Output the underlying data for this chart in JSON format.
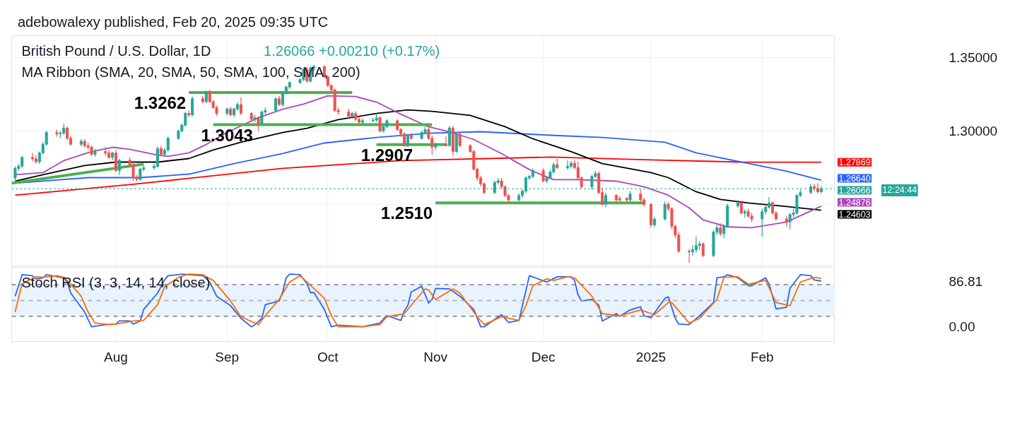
{
  "chart_data": [
    {
      "type": "candlestick",
      "title": "British Pound / U.S. Dollar, 1D",
      "subtitle": "MA Ribbon (SMA, 20, SMA, 50, SMA, 100, SMA, 200)",
      "annotations": [
        "adebowalexy published, Feb 20, 2025 09:35 UTC",
        "1.26066  +0.00210 (+0.17%)",
        "12:24:44",
        {
          "text": "1.27869",
          "x": "2025-02-20",
          "y": 1.27869
        },
        {
          "text": "1.26640",
          "x": "2025-02-20",
          "y": 1.2664
        },
        {
          "text": "1.24876",
          "x": "2025-02-20",
          "y": 1.24876
        },
        {
          "text": "1.24603",
          "x": "2025-02-20",
          "y": 1.24603
        },
        {
          "text": "1.3262",
          "x": "2024-08-22",
          "y": 1.3262
        },
        {
          "text": "1.3043",
          "x": "2024-09-02",
          "y": 1.3043
        },
        {
          "text": "1.2907",
          "x": "2024-10-18",
          "y": 1.2907
        },
        {
          "text": "1.2510",
          "x": "2024-11-01",
          "y": 1.251
        }
      ],
      "x": [
        "2024-07-03",
        "2024-07-04",
        "2024-07-05",
        "2024-07-08",
        "2024-07-09",
        "2024-07-10",
        "2024-07-11",
        "2024-07-12",
        "2024-07-15",
        "2024-07-16",
        "2024-07-17",
        "2024-07-18",
        "2024-07-19",
        "2024-07-22",
        "2024-07-23",
        "2024-07-24",
        "2024-07-25",
        "2024-07-26",
        "2024-07-29",
        "2024-07-30",
        "2024-07-31",
        "2024-08-01",
        "2024-08-02",
        "2024-08-05",
        "2024-08-06",
        "2024-08-07",
        "2024-08-08",
        "2024-08-09",
        "2024-08-12",
        "2024-08-13",
        "2024-08-14",
        "2024-08-15",
        "2024-08-16",
        "2024-08-19",
        "2024-08-20",
        "2024-08-21",
        "2024-08-22",
        "2024-08-23",
        "2024-08-26",
        "2024-08-27",
        "2024-08-28",
        "2024-08-29",
        "2024-08-30",
        "2024-09-02",
        "2024-09-03",
        "2024-09-04",
        "2024-09-05",
        "2024-09-06",
        "2024-09-09",
        "2024-09-10",
        "2024-09-11",
        "2024-09-12",
        "2024-09-13",
        "2024-09-16",
        "2024-09-17",
        "2024-09-18",
        "2024-09-19",
        "2024-09-20",
        "2024-09-23",
        "2024-09-24",
        "2024-09-25",
        "2024-09-26",
        "2024-09-27",
        "2024-09-30",
        "2024-10-01",
        "2024-10-02",
        "2024-10-03",
        "2024-10-04",
        "2024-10-07",
        "2024-10-08",
        "2024-10-09",
        "2024-10-10",
        "2024-10-11",
        "2024-10-14",
        "2024-10-15",
        "2024-10-16",
        "2024-10-17",
        "2024-10-18",
        "2024-10-21",
        "2024-10-22",
        "2024-10-23",
        "2024-10-24",
        "2024-10-25",
        "2024-10-28",
        "2024-10-29",
        "2024-10-30",
        "2024-10-31",
        "2024-11-01",
        "2024-11-04",
        "2024-11-05",
        "2024-11-06",
        "2024-11-07",
        "2024-11-08",
        "2024-11-11",
        "2024-11-12",
        "2024-11-13",
        "2024-11-14",
        "2024-11-15",
        "2024-11-18",
        "2024-11-19",
        "2024-11-20",
        "2024-11-21",
        "2024-11-22",
        "2024-11-25",
        "2024-11-26",
        "2024-11-27",
        "2024-11-28",
        "2024-11-29",
        "2024-12-02",
        "2024-12-03",
        "2024-12-04",
        "2024-12-05",
        "2024-12-06",
        "2024-12-09",
        "2024-12-10",
        "2024-12-11",
        "2024-12-12",
        "2024-12-13",
        "2024-12-16",
        "2024-12-17",
        "2024-12-18",
        "2024-12-19",
        "2024-12-20",
        "2024-12-23",
        "2024-12-24",
        "2024-12-26",
        "2024-12-27",
        "2024-12-30",
        "2024-12-31",
        "2025-01-02",
        "2025-01-03",
        "2025-01-06",
        "2025-01-07",
        "2025-01-08",
        "2025-01-09",
        "2025-01-10",
        "2025-01-13",
        "2025-01-14",
        "2025-01-15",
        "2025-01-16",
        "2025-01-17",
        "2025-01-20",
        "2025-01-21",
        "2025-01-22",
        "2025-01-23",
        "2025-01-24",
        "2025-01-27",
        "2025-01-28",
        "2025-01-29",
        "2025-01-30",
        "2025-01-31",
        "2025-02-03",
        "2025-02-04",
        "2025-02-05",
        "2025-02-06",
        "2025-02-07",
        "2025-02-10",
        "2025-02-11",
        "2025-02-12",
        "2025-02-13",
        "2025-02-14",
        "2025-02-17",
        "2025-02-18",
        "2025-02-19",
        "2025-02-20"
      ],
      "ohlc": [
        [
          1.268,
          1.276,
          1.2665,
          1.2745
        ],
        [
          1.2745,
          1.2775,
          1.273,
          1.276
        ],
        [
          1.276,
          1.283,
          1.275,
          1.282
        ],
        [
          1.282,
          1.285,
          1.2795,
          1.281
        ],
        [
          1.281,
          1.2835,
          1.278,
          1.279
        ],
        [
          1.279,
          1.286,
          1.2775,
          1.285
        ],
        [
          1.285,
          1.2925,
          1.284,
          1.291
        ],
        [
          1.291,
          1.3,
          1.29,
          1.299
        ],
        [
          1.299,
          1.301,
          1.296,
          1.298
        ],
        [
          1.298,
          1.3,
          1.295,
          1.2985
        ],
        [
          1.2985,
          1.305,
          1.2975,
          1.302
        ],
        [
          1.302,
          1.303,
          1.294,
          1.295
        ],
        [
          1.295,
          1.2965,
          1.29,
          1.291
        ],
        [
          1.291,
          1.2945,
          1.2895,
          1.293
        ],
        [
          1.293,
          1.2945,
          1.2885,
          1.29
        ],
        [
          1.29,
          1.292,
          1.287,
          1.289
        ],
        [
          1.289,
          1.29,
          1.283,
          1.284
        ],
        [
          1.284,
          1.288,
          1.2825,
          1.286
        ],
        [
          1.286,
          1.289,
          1.283,
          1.285
        ],
        [
          1.285,
          1.287,
          1.281,
          1.282
        ],
        [
          1.282,
          1.286,
          1.28,
          1.285
        ],
        [
          1.285,
          1.287,
          1.272,
          1.273
        ],
        [
          1.273,
          1.281,
          1.27,
          1.28
        ],
        [
          1.28,
          1.282,
          1.276,
          1.277
        ],
        [
          1.277,
          1.279,
          1.266,
          1.268
        ],
        [
          1.268,
          1.27,
          1.2655,
          1.267
        ],
        [
          1.267,
          1.275,
          1.266,
          1.274
        ],
        [
          1.274,
          1.2765,
          1.2725,
          1.275
        ],
        [
          1.275,
          1.2775,
          1.2735,
          1.276
        ],
        [
          1.276,
          1.2895,
          1.275,
          1.288
        ],
        [
          1.288,
          1.29,
          1.283,
          1.284
        ],
        [
          1.284,
          1.2885,
          1.2825,
          1.287
        ],
        [
          1.287,
          1.296,
          1.286,
          1.295
        ],
        [
          1.295,
          1.301,
          1.294,
          1.3
        ],
        [
          1.3,
          1.305,
          1.299,
          1.304
        ],
        [
          1.304,
          1.313,
          1.303,
          1.312
        ],
        [
          1.312,
          1.314,
          1.3095,
          1.311
        ],
        [
          1.311,
          1.3235,
          1.31,
          1.322
        ],
        [
          1.322,
          1.324,
          1.319,
          1.32
        ],
        [
          1.32,
          1.3275,
          1.319,
          1.327
        ],
        [
          1.327,
          1.328,
          1.319,
          1.32
        ],
        [
          1.32,
          1.321,
          1.315,
          1.316
        ],
        [
          1.316,
          1.3175,
          1.3105,
          1.312
        ],
        [
          1.312,
          1.316,
          1.3105,
          1.315
        ],
        [
          1.315,
          1.3165,
          1.31,
          1.311
        ],
        [
          1.311,
          1.316,
          1.3095,
          1.315
        ],
        [
          1.315,
          1.3195,
          1.314,
          1.318
        ],
        [
          1.318,
          1.323,
          1.311,
          1.312
        ],
        [
          1.312,
          1.313,
          1.307,
          1.308
        ],
        [
          1.308,
          1.311,
          1.306,
          1.309
        ],
        [
          1.309,
          1.31,
          1.3,
          1.305
        ],
        [
          1.305,
          1.314,
          1.304,
          1.313
        ],
        [
          1.313,
          1.316,
          1.3115,
          1.314
        ],
        [
          1.314,
          1.323,
          1.313,
          1.322
        ],
        [
          1.322,
          1.324,
          1.317,
          1.318
        ],
        [
          1.318,
          1.327,
          1.3165,
          1.326
        ],
        [
          1.326,
          1.331,
          1.325,
          1.33
        ],
        [
          1.33,
          1.334,
          1.3285,
          1.333
        ],
        [
          1.333,
          1.336,
          1.332,
          1.335
        ],
        [
          1.335,
          1.343,
          1.334,
          1.342
        ],
        [
          1.342,
          1.3435,
          1.333,
          1.334
        ],
        [
          1.334,
          1.344,
          1.333,
          1.343
        ],
        [
          1.343,
          1.345,
          1.341,
          1.344
        ],
        [
          1.344,
          1.3445,
          1.336,
          1.337
        ],
        [
          1.337,
          1.338,
          1.33,
          1.331
        ],
        [
          1.331,
          1.332,
          1.3255,
          1.328
        ],
        [
          1.328,
          1.329,
          1.313,
          1.314
        ],
        [
          1.314,
          1.316,
          1.311,
          1.313
        ],
        [
          1.313,
          1.315,
          1.3085,
          1.31
        ],
        [
          1.31,
          1.313,
          1.3085,
          1.312
        ],
        [
          1.312,
          1.3135,
          1.307,
          1.308
        ],
        [
          1.308,
          1.3095,
          1.3045,
          1.306
        ],
        [
          1.306,
          1.3085,
          1.305,
          1.307
        ],
        [
          1.307,
          1.309,
          1.306,
          1.3075
        ],
        [
          1.3075,
          1.312,
          1.306,
          1.309
        ],
        [
          1.309,
          1.31,
          1.299,
          1.3
        ],
        [
          1.3,
          1.304,
          1.299,
          1.303
        ],
        [
          1.303,
          1.308,
          1.302,
          1.307
        ],
        [
          1.307,
          1.308,
          1.3,
          1.301
        ],
        [
          1.301,
          1.302,
          1.296,
          1.298
        ],
        [
          1.298,
          1.299,
          1.289,
          1.29
        ],
        [
          1.29,
          1.298,
          1.289,
          1.297
        ],
        [
          1.297,
          1.2985,
          1.294,
          1.295
        ],
        [
          1.295,
          1.3,
          1.294,
          1.299
        ],
        [
          1.299,
          1.303,
          1.298,
          1.301
        ],
        [
          1.301,
          1.304,
          1.294,
          1.295
        ],
        [
          1.295,
          1.297,
          1.284,
          1.289
        ],
        [
          1.289,
          1.292,
          1.287,
          1.291
        ],
        [
          1.291,
          1.2965,
          1.2895,
          1.29
        ],
        [
          1.29,
          1.3035,
          1.2895,
          1.302
        ],
        [
          1.302,
          1.3035,
          1.2835,
          1.286
        ],
        [
          1.286,
          1.299,
          1.285,
          1.298
        ],
        [
          1.298,
          1.299,
          1.289,
          1.29
        ],
        [
          1.29,
          1.291,
          1.285,
          1.286
        ],
        [
          1.286,
          1.287,
          1.273,
          1.274
        ],
        [
          1.274,
          1.275,
          1.266,
          1.268
        ],
        [
          1.268,
          1.2695,
          1.262,
          1.264
        ],
        [
          1.264,
          1.265,
          1.257,
          1.258
        ],
        [
          1.258,
          1.266,
          1.257,
          1.265
        ],
        [
          1.265,
          1.268,
          1.2635,
          1.266
        ],
        [
          1.266,
          1.268,
          1.2605,
          1.262
        ],
        [
          1.262,
          1.263,
          1.255,
          1.256
        ],
        [
          1.256,
          1.257,
          1.251,
          1.253
        ],
        [
          1.253,
          1.2575,
          1.252,
          1.256
        ],
        [
          1.256,
          1.26,
          1.2545,
          1.259
        ],
        [
          1.259,
          1.269,
          1.2575,
          1.268
        ],
        [
          1.268,
          1.27,
          1.2665,
          1.269
        ],
        [
          1.269,
          1.2745,
          1.268,
          1.273
        ],
        [
          1.273,
          1.2745,
          1.265,
          1.266
        ],
        [
          1.266,
          1.269,
          1.2645,
          1.268
        ],
        [
          1.268,
          1.2735,
          1.267,
          1.272
        ],
        [
          1.272,
          1.2785,
          1.271,
          1.277
        ],
        [
          1.277,
          1.281,
          1.274,
          1.275
        ],
        [
          1.275,
          1.28,
          1.2735,
          1.276
        ],
        [
          1.276,
          1.2795,
          1.2745,
          1.278
        ],
        [
          1.278,
          1.28,
          1.274,
          1.275
        ],
        [
          1.275,
          1.279,
          1.267,
          1.268
        ],
        [
          1.268,
          1.269,
          1.261,
          1.262
        ],
        [
          1.262,
          1.27,
          1.26,
          1.269
        ],
        [
          1.269,
          1.273,
          1.268,
          1.271
        ],
        [
          1.271,
          1.2725,
          1.257,
          1.258
        ],
        [
          1.258,
          1.261,
          1.249,
          1.25
        ],
        [
          1.25,
          1.258,
          1.248,
          1.256
        ],
        [
          1.256,
          1.257,
          1.251,
          1.253
        ],
        [
          1.254,
          1.2555,
          1.2515,
          1.253
        ],
        [
          1.254,
          1.255,
          1.2515,
          1.253
        ],
        [
          1.253,
          1.259,
          1.252,
          1.257
        ],
        [
          1.257,
          1.26,
          1.252,
          1.253
        ],
        [
          1.253,
          1.2545,
          1.2485,
          1.25
        ],
        [
          1.25,
          1.251,
          1.234,
          1.236
        ],
        [
          1.236,
          1.2415,
          1.2345,
          1.24
        ],
        [
          1.24,
          1.252,
          1.239,
          1.25
        ],
        [
          1.25,
          1.2515,
          1.2455,
          1.247
        ],
        [
          1.247,
          1.248,
          1.233,
          1.235
        ],
        [
          1.235,
          1.236,
          1.227,
          1.229
        ],
        [
          1.229,
          1.231,
          1.217,
          1.218
        ],
        [
          1.218,
          1.2195,
          1.21,
          1.2175
        ],
        [
          1.2175,
          1.222,
          1.215,
          1.219
        ],
        [
          1.219,
          1.228,
          1.217,
          1.222
        ],
        [
          1.222,
          1.225,
          1.219,
          1.223
        ],
        [
          1.223,
          1.224,
          1.214,
          1.215
        ],
        [
          1.215,
          1.2325,
          1.214,
          1.231
        ],
        [
          1.231,
          1.236,
          1.229,
          1.234
        ],
        [
          1.234,
          1.237,
          1.2285,
          1.23
        ],
        [
          1.23,
          1.2365,
          1.227,
          1.235
        ],
        [
          1.235,
          1.2505,
          1.234,
          1.249
        ],
        [
          1.249,
          1.253,
          1.2475,
          1.251
        ],
        [
          1.251,
          1.2525,
          1.243,
          1.244
        ],
        [
          1.244,
          1.2465,
          1.241,
          1.245
        ],
        [
          1.245,
          1.247,
          1.241,
          1.242
        ],
        [
          1.242,
          1.244,
          1.238,
          1.24
        ],
        [
          1.24,
          1.247,
          1.228,
          1.245
        ],
        [
          1.245,
          1.249,
          1.243,
          1.248
        ],
        [
          1.248,
          1.255,
          1.247,
          1.251
        ],
        [
          1.251,
          1.252,
          1.243,
          1.244
        ],
        [
          1.244,
          1.2455,
          1.239,
          1.24
        ],
        [
          1.24,
          1.242,
          1.235,
          1.238
        ],
        [
          1.238,
          1.244,
          1.233,
          1.243
        ],
        [
          1.243,
          1.247,
          1.241,
          1.244
        ],
        [
          1.244,
          1.257,
          1.243,
          1.256
        ],
        [
          1.256,
          1.26,
          1.255,
          1.258
        ],
        [
          1.258,
          1.264,
          1.257,
          1.262
        ],
        [
          1.262,
          1.264,
          1.259,
          1.261
        ],
        [
          1.261,
          1.2645,
          1.2575,
          1.2586
        ],
        [
          1.25856,
          1.2625,
          1.2575,
          1.26066
        ]
      ],
      "colors": [
        "#26a69a",
        "#26a69a",
        "#26a69a",
        "#ef5350",
        "#ef5350",
        "#26a69a",
        "#26a69a",
        "#26a69a",
        "#ef5350",
        "#26a69a",
        "#26a69a",
        "#ef5350",
        "#ef5350",
        "#26a69a",
        "#ef5350",
        "#ef5350",
        "#ef5350",
        "#26a69a",
        "#ef5350",
        "#ef5350",
        "#26a69a",
        "#ef5350",
        "#26a69a",
        "#ef5350",
        "#ef5350",
        "#ef5350",
        "#26a69a",
        "#26a69a",
        "#26a69a",
        "#26a69a",
        "#ef5350",
        "#26a69a",
        "#26a69a",
        "#26a69a",
        "#26a69a",
        "#26a69a",
        "#ef5350",
        "#26a69a",
        "#ef5350",
        "#26a69a",
        "#ef5350",
        "#ef5350",
        "#ef5350",
        "#26a69a",
        "#ef5350",
        "#26a69a",
        "#26a69a",
        "#ef5350",
        "#ef5350",
        "#26a69a",
        "#ef5350",
        "#26a69a",
        "#26a69a",
        "#26a69a",
        "#ef5350",
        "#26a69a",
        "#26a69a",
        "#26a69a",
        "#26a69a",
        "#26a69a",
        "#ef5350",
        "#26a69a",
        "#26a69a",
        "#ef5350",
        "#ef5350",
        "#ef5350",
        "#ef5350",
        "#ef5350",
        "#ef5350",
        "#26a69a",
        "#ef5350",
        "#ef5350",
        "#26a69a",
        "#26a69a",
        "#26a69a",
        "#ef5350",
        "#26a69a",
        "#26a69a",
        "#ef5350",
        "#ef5350",
        "#ef5350",
        "#26a69a",
        "#ef5350",
        "#26a69a",
        "#26a69a",
        "#ef5350",
        "#ef5350",
        "#26a69a",
        "#ef5350",
        "#26a69a",
        "#ef5350",
        "#26a69a",
        "#ef5350",
        "#ef5350",
        "#ef5350",
        "#ef5350",
        "#ef5350",
        "#ef5350",
        "#26a69a",
        "#26a69a",
        "#ef5350",
        "#ef5350",
        "#ef5350",
        "#26a69a",
        "#26a69a",
        "#26a69a",
        "#26a69a",
        "#26a69a",
        "#ef5350",
        "#26a69a",
        "#26a69a",
        "#26a69a",
        "#ef5350",
        "#26a69a",
        "#26a69a",
        "#ef5350",
        "#ef5350",
        "#ef5350",
        "#26a69a",
        "#26a69a",
        "#ef5350",
        "#ef5350",
        "#26a69a",
        "#ef5350",
        "#ef5350",
        "#ef5350",
        "#26a69a",
        "#ef5350",
        "#ef5350",
        "#ef5350",
        "#26a69a",
        "#26a69a",
        "#ef5350",
        "#ef5350",
        "#ef5350",
        "#ef5350",
        "#ef5350",
        "#26a69a",
        "#26a69a",
        "#26a69a",
        "#ef5350",
        "#26a69a",
        "#26a69a",
        "#ef5350",
        "#26a69a",
        "#26a69a",
        "#26a69a",
        "#ef5350",
        "#26a69a",
        "#ef5350",
        "#ef5350",
        "#26a69a",
        "#26a69a",
        "#26a69a",
        "#ef5350",
        "#ef5350",
        "#ef5350",
        "#26a69a",
        "#26a69a",
        "#26a69a",
        "#26a69a",
        "#26a69a",
        "#ef5350",
        "#ef5350",
        "#26a69a"
      ],
      "series": [
        {
          "type": "line",
          "color": "#ff0000",
          "x": [
            "2024-07-03",
            "2024-08-05",
            "2024-09-18",
            "2024-10-22",
            "2024-12-04",
            "2025-01-02",
            "2025-01-28",
            "2025-02-20"
          ],
          "values": [
            1.2562,
            1.2634,
            1.2745,
            1.2798,
            1.2822,
            1.2803,
            1.2788,
            1.27869
          ]
        },
        {
          "type": "line",
          "color": "#2962ff",
          "x": [
            "2024-07-03",
            "2024-07-24",
            "2024-08-08",
            "2024-08-22",
            "2024-09-04",
            "2024-09-18",
            "2024-09-30",
            "2024-10-15",
            "2024-10-30",
            "2024-11-14",
            "2024-12-04",
            "2024-12-19",
            "2025-01-06",
            "2025-01-15",
            "2025-01-28",
            "2025-02-10",
            "2025-02-20"
          ],
          "values": [
            1.2644,
            1.2682,
            1.2682,
            1.2706,
            1.2778,
            1.2846,
            1.2918,
            1.2956,
            1.2985,
            1.2995,
            1.2971,
            1.2956,
            1.2923,
            1.2851,
            1.2788,
            1.2726,
            1.2664
          ]
        },
        {
          "type": "line",
          "color": "#000000",
          "x": [
            "2024-07-03",
            "2024-07-11",
            "2024-07-23",
            "2024-08-01",
            "2024-08-13",
            "2024-08-22",
            "2024-08-29",
            "2024-09-06",
            "2024-09-18",
            "2024-09-25",
            "2024-10-04",
            "2024-10-15",
            "2024-10-24",
            "2024-10-31",
            "2024-11-11",
            "2024-11-21",
            "2024-11-29",
            "2024-12-10",
            "2024-12-19",
            "2025-01-02",
            "2025-01-07",
            "2025-01-15",
            "2025-01-22",
            "2025-01-30",
            "2025-02-10",
            "2025-02-20"
          ],
          "values": [
            1.2658,
            1.2702,
            1.2764,
            1.2788,
            1.2788,
            1.2812,
            1.287,
            1.2923,
            1.299,
            1.3019,
            1.3077,
            1.312,
            1.3144,
            1.3134,
            1.3106,
            1.3029,
            1.2947,
            1.286,
            1.2778,
            1.2716,
            1.2682,
            1.2586,
            1.2533,
            1.2509,
            1.2485,
            1.24603
          ]
        },
        {
          "type": "line",
          "color": "#ab47bc",
          "x": [
            "2024-07-03",
            "2024-07-11",
            "2024-07-17",
            "2024-07-25",
            "2024-07-31",
            "2024-08-05",
            "2024-08-13",
            "2024-08-16",
            "2024-08-22",
            "2024-08-27",
            "2024-09-02",
            "2024-09-11",
            "2024-09-18",
            "2024-09-24",
            "2024-10-01",
            "2024-10-09",
            "2024-10-15",
            "2024-10-22",
            "2024-10-30",
            "2024-11-05",
            "2024-11-12",
            "2024-11-20",
            "2024-11-27",
            "2024-11-29",
            "2024-12-05",
            "2024-12-12",
            "2024-12-23",
            "2024-12-31",
            "2025-01-07",
            "2025-01-13",
            "2025-01-17",
            "2025-01-24",
            "2025-01-31",
            "2025-02-10",
            "2025-02-20"
          ],
          "values": [
            1.2702,
            1.2716,
            1.2798,
            1.286,
            1.2889,
            1.2875,
            1.2836,
            1.2827,
            1.2851,
            1.2908,
            1.299,
            1.3091,
            1.3149,
            1.3183,
            1.324,
            1.3235,
            1.3197,
            1.3115,
            1.3029,
            1.2995,
            1.2942,
            1.2846,
            1.275,
            1.2726,
            1.2668,
            1.2668,
            1.2658,
            1.262,
            1.2562,
            1.2476,
            1.2394,
            1.2346,
            1.2341,
            1.2379,
            1.24876
          ]
        },
        {
          "type": "line",
          "color": "#4caf50",
          "x": [
            "2024-07-02",
            "2024-08-09"
          ],
          "values": [
            1.2644,
            1.2774
          ]
        },
        {
          "type": "line",
          "color": "#4caf50",
          "x": [
            "2024-08-22",
            "2024-10-08"
          ],
          "values": [
            1.3262,
            1.3262
          ]
        },
        {
          "type": "line",
          "color": "#4caf50",
          "x": [
            "2024-08-29",
            "2024-10-31"
          ],
          "values": [
            1.3043,
            1.3043
          ]
        },
        {
          "type": "line",
          "color": "#4caf50",
          "x": [
            "2024-10-15",
            "2024-11-04"
          ],
          "values": [
            1.2907,
            1.2907
          ]
        },
        {
          "type": "line",
          "color": "#4caf50",
          "x": [
            "2024-11-01",
            "2024-12-31"
          ],
          "values": [
            1.251,
            1.251
          ]
        }
      ],
      "xlim": [
        "2024-07-02",
        "2025-02-24"
      ],
      "ylim": [
        1.208,
        1.365
      ],
      "xticks": [
        {
          "value": "2024-08-01",
          "label": null
        },
        {
          "value": "2024-09-02",
          "label": null
        },
        {
          "value": "2024-10-01",
          "label": null
        },
        {
          "value": "2024-11-01",
          "label": null
        },
        {
          "value": "2024-12-02",
          "label": null
        },
        {
          "value": "2025-01-02",
          "label": null
        },
        {
          "value": "2025-02-03",
          "label": null
        }
      ],
      "yticks": [
        {
          "value": 1.35,
          "label": "1.35000"
        },
        {
          "value": 1.3,
          "label": "1.30000"
        },
        {
          "value": 1.25,
          "label": null
        }
      ],
      "ref_lines": [
        {
          "axis": "y",
          "value": 1.26066,
          "label": "1.26066",
          "color": "#26a69a",
          "line_style": "dotted"
        }
      ],
      "grid": true,
      "tick_labels": "y"
    },
    {
      "type": "line",
      "title": "Stoch RSI (3, 3, 14, 14, close)",
      "series": [
        {
          "color": "#2962ff",
          "x": [
            "2024-07-03",
            "2024-07-05",
            "2024-07-08",
            "2024-07-09",
            "2024-07-11",
            "2024-07-12",
            "2024-07-16",
            "2024-07-17",
            "2024-07-18",
            "2024-07-19",
            "2024-07-23",
            "2024-07-25",
            "2024-07-29",
            "2024-08-01",
            "2024-08-02",
            "2024-08-05",
            "2024-08-06",
            "2024-08-08",
            "2024-08-09",
            "2024-08-13",
            "2024-08-15",
            "2024-08-16",
            "2024-08-20",
            "2024-08-22",
            "2024-08-26",
            "2024-08-28",
            "2024-08-30",
            "2024-09-03",
            "2024-09-06",
            "2024-09-09",
            "2024-09-10",
            "2024-09-12",
            "2024-09-13",
            "2024-09-17",
            "2024-09-18",
            "2024-09-19",
            "2024-09-20",
            "2024-09-23",
            "2024-09-25",
            "2024-09-26",
            "2024-09-27",
            "2024-09-30",
            "2024-10-02",
            "2024-10-04",
            "2024-10-11",
            "2024-10-16",
            "2024-10-17",
            "2024-10-18",
            "2024-10-22",
            "2024-10-23",
            "2024-10-24",
            "2024-10-25",
            "2024-10-28",
            "2024-10-30",
            "2024-10-31",
            "2024-11-01",
            "2024-11-05",
            "2024-11-08",
            "2024-11-12",
            "2024-11-14",
            "2024-11-15",
            "2024-11-20",
            "2024-11-22",
            "2024-11-25",
            "2024-11-28",
            "2024-12-03",
            "2024-12-06",
            "2024-12-10",
            "2024-12-11",
            "2024-12-12",
            "2024-12-13",
            "2024-12-16",
            "2024-12-18",
            "2024-12-19",
            "2024-12-23",
            "2024-12-24",
            "2024-12-27",
            "2024-12-30",
            "2024-12-31",
            "2025-01-02",
            "2025-01-06",
            "2025-01-07",
            "2025-01-09",
            "2025-01-10",
            "2025-01-13",
            "2025-01-16",
            "2025-01-20",
            "2025-01-21",
            "2025-01-23",
            "2025-01-24",
            "2025-01-27",
            "2025-01-30",
            "2025-01-31",
            "2025-02-04",
            "2025-02-05",
            "2025-02-07",
            "2025-02-10",
            "2025-02-11",
            "2025-02-14",
            "2025-02-17",
            "2025-02-18",
            "2025-02-20"
          ],
          "values": [
            58,
            99,
            97,
            91,
            93,
            99,
            94,
            93,
            85,
            64,
            28,
            0,
            4,
            5,
            11,
            11,
            5,
            11,
            33,
            64,
            89,
            97,
            100,
            99,
            97,
            85,
            58,
            40,
            16,
            0,
            4,
            16,
            42,
            49,
            66,
            93,
            100,
            99,
            82,
            65,
            65,
            33,
            0,
            3,
            0,
            7,
            15,
            21,
            12,
            30,
            40,
            66,
            77,
            45,
            52,
            73,
            72,
            58,
            33,
            0,
            0,
            23,
            8,
            12,
            97,
            85,
            95,
            95,
            88,
            61,
            49,
            52,
            41,
            11,
            25,
            20,
            32,
            38,
            21,
            17,
            54,
            57,
            16,
            5,
            4,
            21,
            46,
            93,
            95,
            99,
            93,
            78,
            78,
            93,
            81,
            34,
            37,
            73,
            99,
            97,
            89,
            86.81
          ]
        },
        {
          "color": "#ff6d00",
          "x": [
            "2024-07-03",
            "2024-07-05",
            "2024-07-09",
            "2024-07-11",
            "2024-07-15",
            "2024-07-17",
            "2024-07-18",
            "2024-07-22",
            "2024-07-24",
            "2024-07-26",
            "2024-07-30",
            "2024-08-01",
            "2024-08-06",
            "2024-08-09",
            "2024-08-13",
            "2024-08-15",
            "2024-08-19",
            "2024-08-22",
            "2024-08-26",
            "2024-08-29",
            "2024-09-03",
            "2024-09-06",
            "2024-09-11",
            "2024-09-13",
            "2024-09-17",
            "2024-09-20",
            "2024-09-23",
            "2024-09-25",
            "2024-09-30",
            "2024-10-02",
            "2024-10-04",
            "2024-10-11",
            "2024-10-16",
            "2024-10-18",
            "2024-10-23",
            "2024-10-29",
            "2024-10-30",
            "2024-11-01",
            "2024-11-06",
            "2024-11-08",
            "2024-11-13",
            "2024-11-15",
            "2024-11-20",
            "2024-11-25",
            "2024-11-27",
            "2024-11-29",
            "2024-12-03",
            "2024-12-05",
            "2024-12-09",
            "2024-12-11",
            "2024-12-16",
            "2024-12-19",
            "2024-12-24",
            "2024-12-30",
            "2025-01-03",
            "2025-01-07",
            "2025-01-08",
            "2025-01-13",
            "2025-01-16",
            "2025-01-21",
            "2025-01-23",
            "2025-01-27",
            "2025-01-30",
            "2025-02-04",
            "2025-02-07",
            "2025-02-11",
            "2025-02-14",
            "2025-02-18",
            "2025-02-20"
          ],
          "values": [
            28,
            82,
            95,
            94,
            97,
            94,
            88,
            58,
            28,
            7,
            4,
            5,
            11,
            12,
            42,
            76,
            94,
            100,
            99,
            88,
            49,
            19,
            4,
            21,
            52,
            85,
            97,
            85,
            54,
            21,
            0,
            0,
            4,
            19,
            25,
            72,
            70,
            52,
            72,
            64,
            19,
            4,
            19,
            12,
            40,
            78,
            91,
            88,
            95,
            93,
            58,
            25,
            21,
            32,
            23,
            46,
            46,
            7,
            16,
            52,
            94,
            95,
            81,
            88,
            46,
            40,
            85,
            94,
            92
          ]
        }
      ],
      "xlim": [
        "2024-07-02",
        "2025-02-24"
      ],
      "ylim": [
        -28,
        113
      ],
      "xticks": [
        {
          "value": "2024-08-01",
          "label": "Aug"
        },
        {
          "value": "2024-09-02",
          "label": "Sep"
        },
        {
          "value": "2024-10-01",
          "label": "Oct"
        },
        {
          "value": "2024-11-01",
          "label": "Nov"
        },
        {
          "value": "2024-12-02",
          "label": "Dec"
        },
        {
          "value": "2025-01-02",
          "label": "2025"
        },
        {
          "value": "2025-02-03",
          "label": "Feb"
        }
      ],
      "yticks": [
        {
          "value": 0,
          "label": "0.00"
        },
        {
          "value": 86.81,
          "label": "86.81"
        }
      ],
      "ref_lines": [
        {
          "axis": "y",
          "value": 80,
          "color": "#787b86",
          "line_style": "dashed"
        },
        {
          "axis": "y",
          "value": 50,
          "color": "#a3a6af",
          "line_style": "dashed"
        },
        {
          "axis": "y",
          "value": 20,
          "color": "#787b86",
          "line_style": "dashed"
        }
      ],
      "bands": [
        {
          "axis": "y",
          "from": 20,
          "to": 80,
          "color": "#e8f3fd"
        }
      ],
      "grid": "x"
    }
  ]
}
